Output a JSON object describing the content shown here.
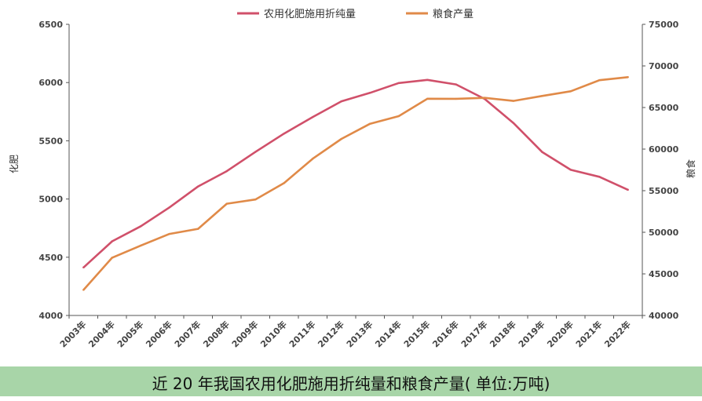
{
  "chart_data": {
    "type": "line",
    "title": "近 20 年我国农用化肥施用折纯量和粮食产量( 单位:万吨)",
    "categories": [
      "2003年",
      "2004年",
      "2005年",
      "2006年",
      "2007年",
      "2008年",
      "2009年",
      "2010年",
      "2011年",
      "2012年",
      "2013年",
      "2014年",
      "2015年",
      "2016年",
      "2017年",
      "2018年",
      "2019年",
      "2020年",
      "2021年",
      "2022年"
    ],
    "y_left": {
      "label": "化肥",
      "ylim": [
        4000,
        6500
      ],
      "ticks": [
        "4000",
        "4500",
        "5000",
        "5500",
        "6000",
        "6500"
      ]
    },
    "y_right": {
      "label": "粮食",
      "ylim": [
        40000,
        75000
      ],
      "ticks": [
        "40000",
        "45000",
        "50000",
        "55000",
        "60000",
        "65000",
        "70000",
        "75000"
      ]
    },
    "series": [
      {
        "name": "农用化肥施用折纯量",
        "axis": "left",
        "color": "#d0506a",
        "values": [
          4412,
          4637,
          4766,
          4928,
          5108,
          5239,
          5404,
          5562,
          5704,
          5839,
          5912,
          5996,
          6023,
          5984,
          5859,
          5653,
          5404,
          5251,
          5191,
          5079
        ]
      },
      {
        "name": "粮食产量",
        "axis": "right",
        "color": "#e08a48",
        "values": [
          43070,
          46947,
          48402,
          49804,
          50414,
          53434,
          53941,
          55911,
          58849,
          61223,
          63048,
          63965,
          66060,
          66044,
          66161,
          65789,
          66384,
          66949,
          68285,
          68653
        ]
      }
    ],
    "legend_position": "top-center",
    "grid": false
  }
}
